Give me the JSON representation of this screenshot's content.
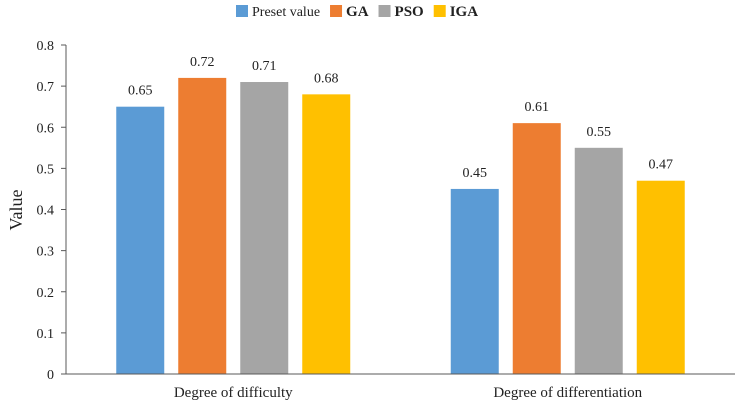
{
  "chart_data": {
    "type": "bar",
    "title": "",
    "xlabel": "",
    "ylabel": "Value",
    "ylim": [
      0,
      0.8
    ],
    "yticks": [
      "0",
      "0.1",
      "0.2",
      "0.3",
      "0.4",
      "0.5",
      "0.6",
      "0.7",
      "0.8"
    ],
    "grid": false,
    "legend_position": "top",
    "categories": [
      "Degree of difficulty",
      "Degree of differentiation"
    ],
    "series": [
      {
        "name": "Preset value",
        "color": "#5B9BD5",
        "values": [
          0.65,
          0.45
        ],
        "labels": [
          "0.65",
          "0.45"
        ]
      },
      {
        "name": "GA",
        "color": "#ED7D31",
        "values": [
          0.72,
          0.61
        ],
        "labels": [
          "0.72",
          "0.61"
        ]
      },
      {
        "name": "PSO",
        "color": "#A5A5A5",
        "values": [
          0.71,
          0.55
        ],
        "labels": [
          "0.71",
          "0.55"
        ]
      },
      {
        "name": "IGA",
        "color": "#FFC000",
        "values": [
          0.68,
          0.47
        ],
        "labels": [
          "0.68",
          "0.47"
        ]
      }
    ]
  }
}
